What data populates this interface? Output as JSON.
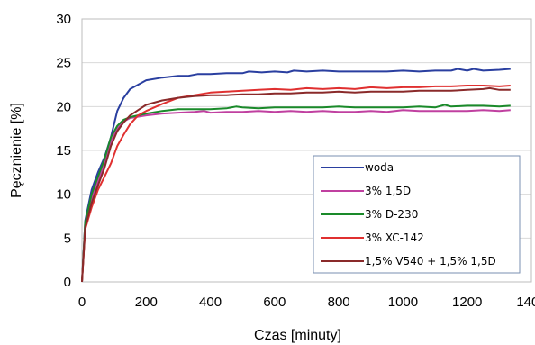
{
  "chart_data": {
    "type": "line",
    "title": "",
    "xlabel": "Czas [minuty]",
    "ylabel": "Pęcznienie [%]",
    "xlim": [
      0,
      1400
    ],
    "ylim": [
      0,
      30
    ],
    "xticks": [
      0,
      200,
      400,
      600,
      800,
      1000,
      1200,
      1400
    ],
    "yticks": [
      0,
      5,
      10,
      15,
      20,
      25,
      30
    ],
    "grid": "horizontal",
    "legend_position": "lower-right",
    "series": [
      {
        "name": "woda",
        "color": "#2a3fa0",
        "points": [
          [
            0,
            0
          ],
          [
            10,
            7
          ],
          [
            30,
            10.5
          ],
          [
            50,
            12.5
          ],
          [
            70,
            14.2
          ],
          [
            90,
            16.5
          ],
          [
            110,
            19.5
          ],
          [
            130,
            21
          ],
          [
            150,
            22
          ],
          [
            175,
            22.5
          ],
          [
            200,
            23
          ],
          [
            250,
            23.3
          ],
          [
            300,
            23.5
          ],
          [
            330,
            23.5
          ],
          [
            360,
            23.7
          ],
          [
            400,
            23.7
          ],
          [
            450,
            23.8
          ],
          [
            500,
            23.8
          ],
          [
            520,
            24
          ],
          [
            560,
            23.9
          ],
          [
            600,
            24
          ],
          [
            640,
            23.9
          ],
          [
            660,
            24.1
          ],
          [
            700,
            24
          ],
          [
            750,
            24.1
          ],
          [
            800,
            24
          ],
          [
            850,
            24
          ],
          [
            900,
            24
          ],
          [
            950,
            24
          ],
          [
            1000,
            24.1
          ],
          [
            1050,
            24
          ],
          [
            1100,
            24.1
          ],
          [
            1150,
            24.1
          ],
          [
            1170,
            24.3
          ],
          [
            1200,
            24.1
          ],
          [
            1220,
            24.3
          ],
          [
            1250,
            24.1
          ],
          [
            1300,
            24.2
          ],
          [
            1335,
            24.3
          ]
        ]
      },
      {
        "name": "3% 1,5D",
        "color": "#c040a0",
        "points": [
          [
            0,
            0
          ],
          [
            10,
            6.5
          ],
          [
            30,
            9.5
          ],
          [
            50,
            11.5
          ],
          [
            70,
            13.5
          ],
          [
            90,
            16
          ],
          [
            110,
            17.5
          ],
          [
            130,
            18.3
          ],
          [
            150,
            18.7
          ],
          [
            200,
            19
          ],
          [
            250,
            19.2
          ],
          [
            300,
            19.3
          ],
          [
            350,
            19.4
          ],
          [
            380,
            19.5
          ],
          [
            400,
            19.3
          ],
          [
            450,
            19.4
          ],
          [
            500,
            19.4
          ],
          [
            550,
            19.5
          ],
          [
            600,
            19.4
          ],
          [
            650,
            19.5
          ],
          [
            700,
            19.4
          ],
          [
            750,
            19.5
          ],
          [
            800,
            19.4
          ],
          [
            850,
            19.4
          ],
          [
            900,
            19.5
          ],
          [
            950,
            19.4
          ],
          [
            1000,
            19.6
          ],
          [
            1050,
            19.5
          ],
          [
            1100,
            19.5
          ],
          [
            1150,
            19.5
          ],
          [
            1200,
            19.5
          ],
          [
            1250,
            19.6
          ],
          [
            1300,
            19.5
          ],
          [
            1335,
            19.6
          ]
        ]
      },
      {
        "name": "3% D-230",
        "color": "#1a8a2a",
        "points": [
          [
            0,
            0
          ],
          [
            10,
            6.8
          ],
          [
            30,
            10
          ],
          [
            50,
            12
          ],
          [
            70,
            14
          ],
          [
            90,
            16.5
          ],
          [
            110,
            17.8
          ],
          [
            130,
            18.5
          ],
          [
            150,
            18.8
          ],
          [
            200,
            19.2
          ],
          [
            250,
            19.5
          ],
          [
            300,
            19.7
          ],
          [
            350,
            19.7
          ],
          [
            400,
            19.7
          ],
          [
            450,
            19.8
          ],
          [
            480,
            20
          ],
          [
            500,
            19.9
          ],
          [
            550,
            19.8
          ],
          [
            600,
            19.9
          ],
          [
            650,
            19.9
          ],
          [
            700,
            19.9
          ],
          [
            750,
            19.9
          ],
          [
            800,
            20
          ],
          [
            850,
            19.9
          ],
          [
            900,
            19.9
          ],
          [
            950,
            19.9
          ],
          [
            1000,
            19.9
          ],
          [
            1050,
            20
          ],
          [
            1100,
            19.9
          ],
          [
            1130,
            20.2
          ],
          [
            1150,
            20
          ],
          [
            1200,
            20.1
          ],
          [
            1250,
            20.1
          ],
          [
            1300,
            20
          ],
          [
            1335,
            20.1
          ]
        ]
      },
      {
        "name": "3% XC-142",
        "color": "#e03030",
        "points": [
          [
            0,
            0
          ],
          [
            10,
            6
          ],
          [
            30,
            8.5
          ],
          [
            50,
            10.5
          ],
          [
            70,
            12
          ],
          [
            90,
            13.5
          ],
          [
            110,
            15.5
          ],
          [
            130,
            16.8
          ],
          [
            150,
            18
          ],
          [
            175,
            19
          ],
          [
            200,
            19.5
          ],
          [
            250,
            20.3
          ],
          [
            300,
            21
          ],
          [
            350,
            21.3
          ],
          [
            400,
            21.6
          ],
          [
            450,
            21.7
          ],
          [
            500,
            21.8
          ],
          [
            550,
            21.9
          ],
          [
            600,
            22
          ],
          [
            650,
            21.9
          ],
          [
            700,
            22.1
          ],
          [
            750,
            22
          ],
          [
            800,
            22.1
          ],
          [
            850,
            22
          ],
          [
            900,
            22.2
          ],
          [
            950,
            22.1
          ],
          [
            1000,
            22.2
          ],
          [
            1050,
            22.2
          ],
          [
            1100,
            22.3
          ],
          [
            1150,
            22.3
          ],
          [
            1200,
            22.4
          ],
          [
            1250,
            22.4
          ],
          [
            1300,
            22.3
          ],
          [
            1335,
            22.4
          ]
        ]
      },
      {
        "name": "1,5% V540 + 1,5% 1,5D",
        "color": "#8a2a2a",
        "points": [
          [
            0,
            0
          ],
          [
            10,
            6.2
          ],
          [
            30,
            9
          ],
          [
            50,
            11
          ],
          [
            70,
            13
          ],
          [
            90,
            15.5
          ],
          [
            110,
            17.2
          ],
          [
            130,
            18.2
          ],
          [
            150,
            19
          ],
          [
            175,
            19.6
          ],
          [
            200,
            20.2
          ],
          [
            250,
            20.7
          ],
          [
            300,
            21
          ],
          [
            350,
            21.2
          ],
          [
            400,
            21.3
          ],
          [
            450,
            21.3
          ],
          [
            500,
            21.4
          ],
          [
            550,
            21.4
          ],
          [
            600,
            21.5
          ],
          [
            650,
            21.5
          ],
          [
            700,
            21.6
          ],
          [
            750,
            21.6
          ],
          [
            800,
            21.7
          ],
          [
            850,
            21.6
          ],
          [
            900,
            21.7
          ],
          [
            950,
            21.7
          ],
          [
            1000,
            21.7
          ],
          [
            1050,
            21.8
          ],
          [
            1100,
            21.8
          ],
          [
            1150,
            21.8
          ],
          [
            1200,
            21.9
          ],
          [
            1250,
            22
          ],
          [
            1270,
            22.1
          ],
          [
            1300,
            21.9
          ],
          [
            1335,
            21.9
          ]
        ]
      }
    ]
  }
}
